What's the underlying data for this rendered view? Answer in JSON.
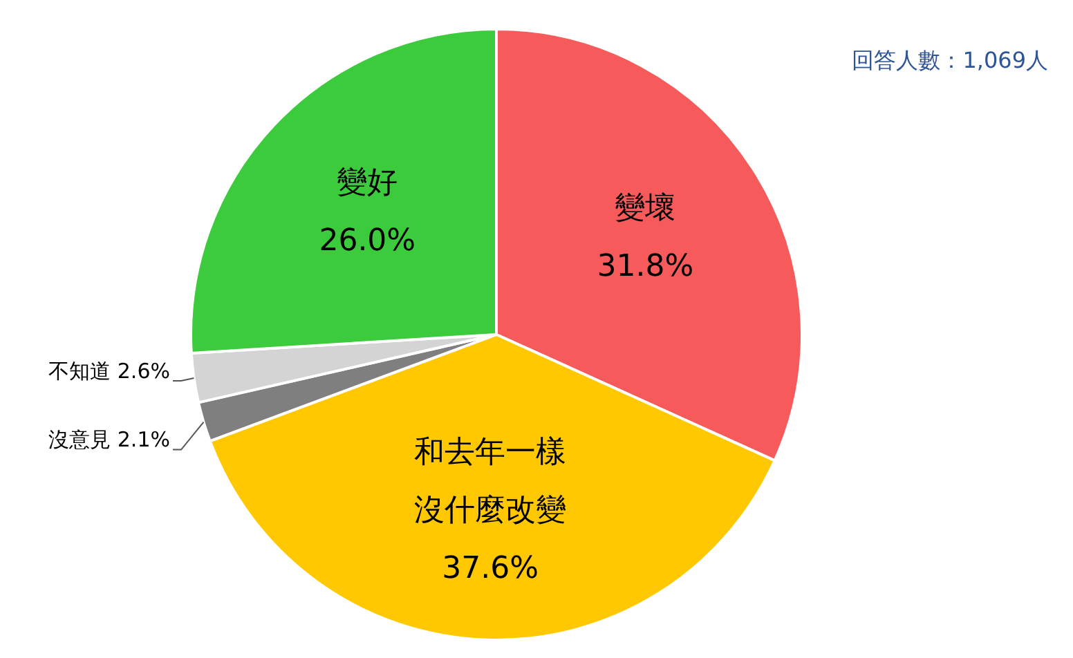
{
  "chart_data": {
    "type": "pie",
    "categories": [
      "變壞",
      "和去年一樣沒什麼改變",
      "沒意見",
      "不知道",
      "變好"
    ],
    "values": [
      31.8,
      37.6,
      2.1,
      2.6,
      26.0
    ],
    "value_labels": [
      "31.8%",
      "37.6%",
      "2.1%",
      "2.6%",
      "26.0%"
    ],
    "colors": [
      "#f75a5a",
      "#ffc800",
      "#7f7f7f",
      "#d4d4d4",
      "#3ccb3c"
    ],
    "annotations": [
      "回答人數：1,069人"
    ],
    "legend": false
  }
}
